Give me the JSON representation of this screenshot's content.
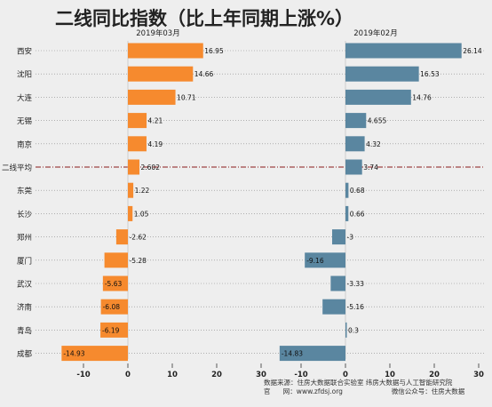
{
  "title": "二线同比指数（比上年同期上涨%）",
  "source_line1": "数据来源：住房大数据联合实验室  纬房大数据与人工智能研究院",
  "source_line2": "官      网：www.zfdsj.org                       微信公众号：住房大数据",
  "colors": {
    "left_bar": "#f68a2e",
    "right_bar": "#5a86a0",
    "background": "#eeeeee",
    "grid": "#888888",
    "highlight_line": "#8b1a1a"
  },
  "chart_data": [
    {
      "type": "bar",
      "orientation": "horizontal",
      "title": "2019年03月",
      "categories": [
        "西安",
        "沈阳",
        "大连",
        "无锡",
        "南京",
        "二线平均",
        "东莞",
        "长沙",
        "郑州",
        "厦门",
        "武汉",
        "济南",
        "青岛",
        "成都"
      ],
      "values": [
        16.95,
        14.66,
        10.71,
        4.21,
        4.19,
        2.602,
        1.22,
        1.05,
        -2.62,
        -5.28,
        -5.63,
        -6.08,
        -6.19,
        -14.93
      ],
      "value_labels": [
        "16.95",
        "14.66",
        "10.71",
        "4.21",
        "4.19",
        "2.602",
        "1.22",
        "1.05",
        "-2.62",
        "-5.28",
        "-5.63",
        "-6.08",
        "-6.19",
        "-14.93"
      ],
      "xlim": [
        -15,
        30
      ],
      "xticks": [
        -10,
        0,
        10,
        20,
        30
      ],
      "highlight_category": "二线平均",
      "grid": "dotted horizontal"
    },
    {
      "type": "bar",
      "orientation": "horizontal",
      "title": "2019年02月",
      "categories": [
        "西安",
        "沈阳",
        "大连",
        "无锡",
        "南京",
        "二线平均",
        "东莞",
        "长沙",
        "郑州",
        "厦门",
        "武汉",
        "济南",
        "青岛",
        "成都"
      ],
      "values": [
        26.14,
        16.53,
        14.76,
        4.655,
        4.32,
        3.74,
        0.68,
        0.66,
        -3,
        -9.16,
        -3.33,
        -5.16,
        0.3,
        -14.83
      ],
      "value_labels": [
        "26.14",
        "16.53",
        "14.76",
        "4.655",
        "4.32",
        "3.74",
        "0.68",
        "0.66",
        "-3",
        "-9.16",
        "-3.33",
        "-5.16",
        "0.3",
        "-14.83"
      ],
      "xlim": [
        -15,
        30
      ],
      "xticks": [
        -10,
        0,
        10,
        20,
        30
      ],
      "highlight_category": "二线平均",
      "grid": "dotted horizontal"
    }
  ]
}
